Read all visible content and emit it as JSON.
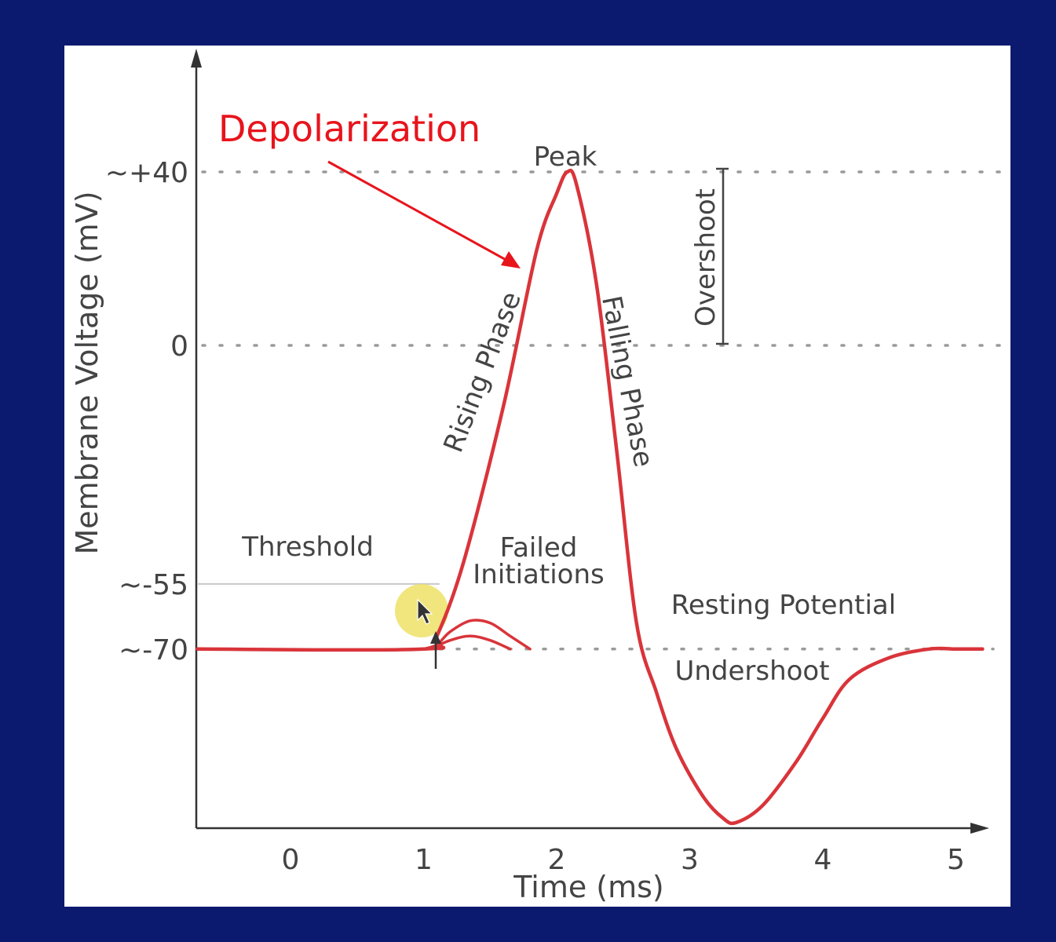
{
  "chart_data": {
    "type": "line",
    "title": "",
    "xlabel": "Time (ms)",
    "ylabel": "Membrane Voltage (mV)",
    "x_ticks": [
      "0",
      "1",
      "2",
      "3",
      "4",
      "5"
    ],
    "y_ticks": [
      {
        "value": 40,
        "label": "~+40"
      },
      {
        "value": 0,
        "label": "0"
      },
      {
        "value": -55,
        "label": "~-55"
      },
      {
        "value": -70,
        "label": "~-70"
      }
    ],
    "xlim": [
      -0.7,
      5.2
    ],
    "ylim": [
      -117,
      70
    ],
    "series": [
      {
        "x": [
          -0.7,
          1.0,
          1.1,
          1.3,
          1.6,
          1.85,
          2.0,
          2.08,
          2.15,
          2.3,
          2.45,
          2.6,
          2.75,
          2.9,
          3.1,
          3.25,
          3.35,
          3.55,
          3.8,
          4.0,
          4.2,
          4.5,
          4.8,
          5.0,
          5.2
        ],
        "y": [
          -70,
          -70,
          -67,
          -50,
          -14,
          22,
          35,
          40,
          37,
          14,
          -24,
          -64,
          -80,
          -93,
          -104,
          -109,
          -110,
          -106,
          -96,
          -86,
          -77,
          -72,
          -70,
          -70,
          -70
        ]
      }
    ],
    "failed_initiations": [
      {
        "x": [
          1.0,
          1.1,
          1.2,
          1.35,
          1.5,
          1.65,
          1.8
        ],
        "y": [
          -70,
          -69,
          -66,
          -63.5,
          -64,
          -67,
          -70
        ]
      },
      {
        "x": [
          1.05,
          1.2,
          1.35,
          1.5,
          1.65
        ],
        "y": [
          -70,
          -68,
          -67,
          -68,
          -70
        ]
      }
    ],
    "annotations": {
      "depolarization": "Depolarization",
      "peak": "Peak",
      "overshoot": "Overshoot",
      "rising_phase": "Rising Phase",
      "falling_phase": "Falling Phase",
      "threshold": "Threshold",
      "failed_line1": "Failed",
      "failed_line2": "Initiations",
      "resting_potential": "Resting Potential",
      "undershoot": "Undershoot"
    },
    "colors": {
      "curve": "#d9343a",
      "highlight": "#ede266",
      "accent_text": "#e8141c",
      "background": "#0b1a6e",
      "panel": "#ffffff"
    }
  }
}
